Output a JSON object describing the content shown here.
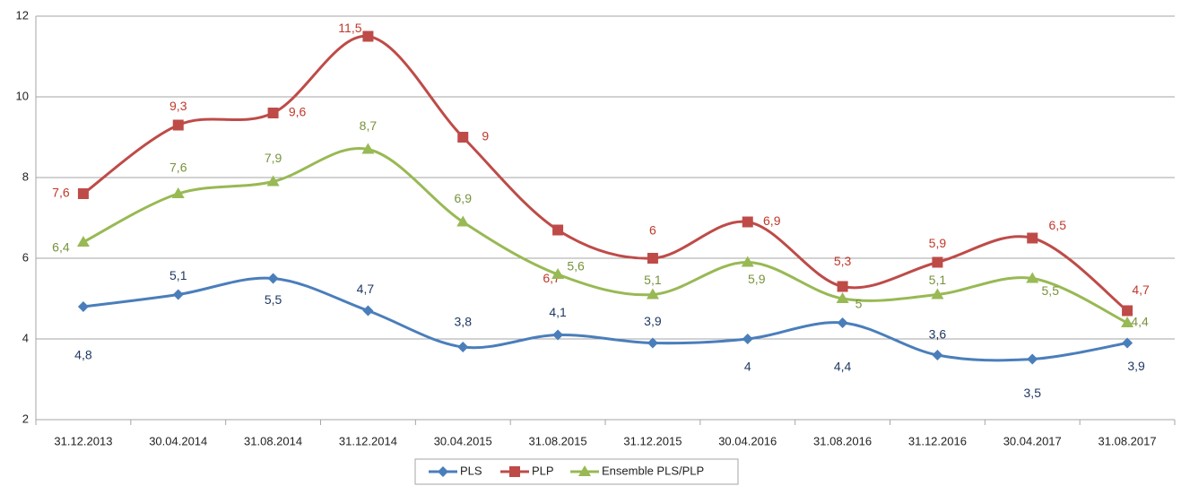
{
  "chart_data": {
    "type": "line",
    "categories": [
      "31.12.2013",
      "30.04.2014",
      "31.08.2014",
      "31.12.2014",
      "30.04.2015",
      "31.08.2015",
      "31.12.2015",
      "30.04.2016",
      "31.08.2016",
      "31.12.2016",
      "30.04.2017",
      "31.08.2017"
    ],
    "series": [
      {
        "name": "PLS",
        "color": "#4a7ebb",
        "label_color": "#1f3864",
        "marker": "diamond",
        "values": [
          4.8,
          5.1,
          5.5,
          4.7,
          3.8,
          4.1,
          3.9,
          4,
          4.4,
          3.6,
          3.5,
          3.9
        ],
        "value_labels": [
          "4,8",
          "5,1",
          "5,5",
          "4,7",
          "3,8",
          "4,1",
          "3,9",
          "4",
          "4,4",
          "3,6",
          "3,5",
          "3,9"
        ]
      },
      {
        "name": "PLP",
        "color": "#be4b48",
        "label_color": "#c0392b",
        "marker": "square",
        "values": [
          7.6,
          9.3,
          9.6,
          11.5,
          9,
          6.7,
          6,
          6.9,
          5.3,
          5.9,
          6.5,
          4.7
        ],
        "value_labels": [
          "7,6",
          "9,3",
          "9,6",
          "11,5",
          "9",
          "6,7",
          "6",
          "6,9",
          "5,3",
          "5,9",
          "6,5",
          "4,7"
        ]
      },
      {
        "name": "Ensemble PLS/PLP",
        "color": "#98b954",
        "label_color": "#77933c",
        "marker": "triangle",
        "values": [
          6.4,
          7.6,
          7.9,
          8.7,
          6.9,
          5.6,
          5.1,
          5.9,
          5,
          5.1,
          5.5,
          4.4
        ],
        "value_labels": [
          "6,4",
          "7,6",
          "7,9",
          "8,7",
          "6,9",
          "5,6",
          "5,1",
          "5,9",
          "5",
          "5,1",
          "5,5",
          "4,4"
        ]
      }
    ],
    "ylim": [
      2,
      12
    ],
    "yticks": [
      2,
      4,
      6,
      8,
      10,
      12
    ],
    "grid": true,
    "legend": "bottom"
  }
}
